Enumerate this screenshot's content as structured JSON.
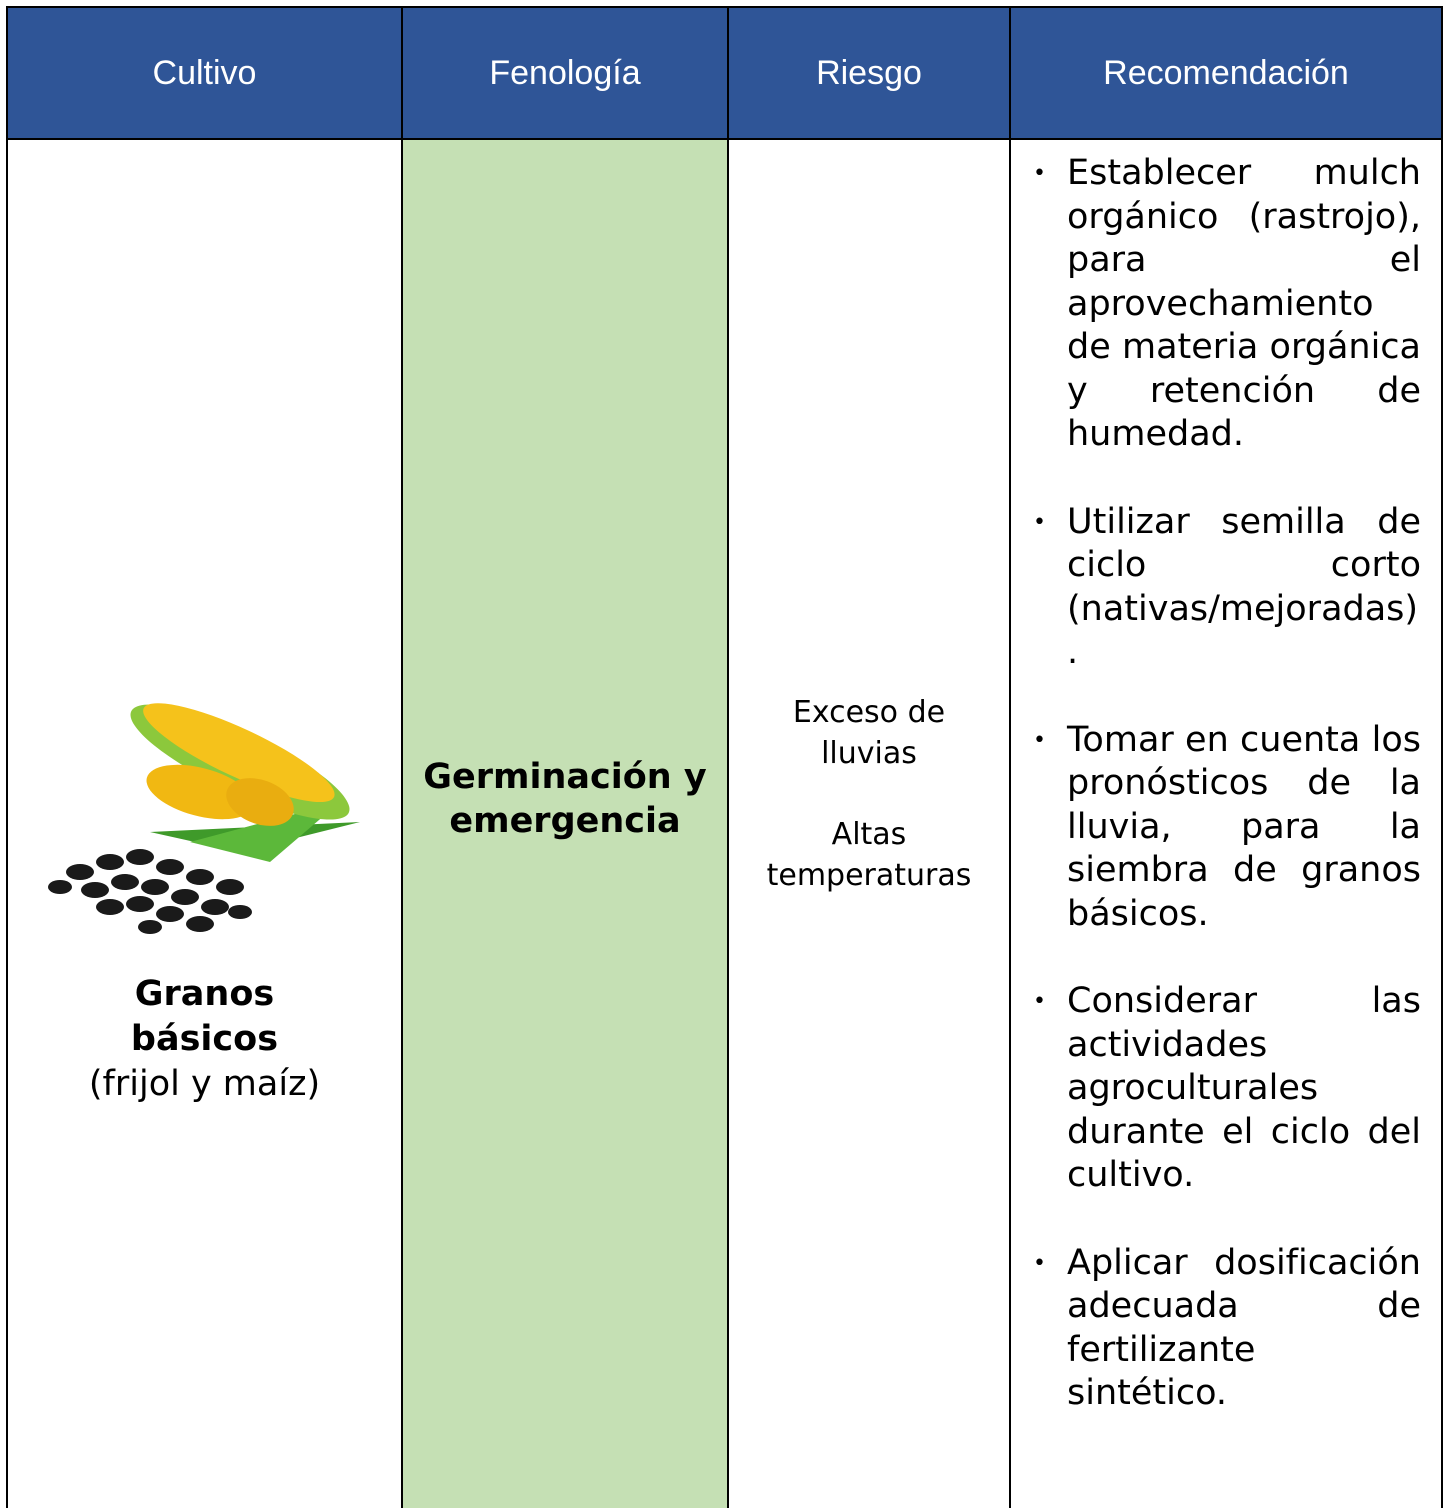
{
  "table": {
    "header": [
      "Cultivo",
      "Fenología",
      "Riesgo",
      "Recomendación"
    ],
    "rows": [
      {
        "cultivo": {
          "title": "Granos básicos",
          "note": "(frijol y maíz)"
        },
        "fenologia": "Germinación y emergencia",
        "riesgo": [
          "Exceso de lluvias",
          "Altas temperaturas"
        ],
        "recomendaciones": [
          "Establecer mulch orgánico (rastrojo), para el aprovechamiento de materia orgánica y retención de humedad.",
          "Utilizar semilla de ciclo corto (nativas/mejoradas).",
          "Tomar en cuenta los pronósticos de la lluvia, para la siembra de granos básicos.",
          "Considerar las actividades agroculturales durante el ciclo del cultivo.",
          "Aplicar dosificación adecuada de fertilizante sintético."
        ]
      }
    ]
  }
}
